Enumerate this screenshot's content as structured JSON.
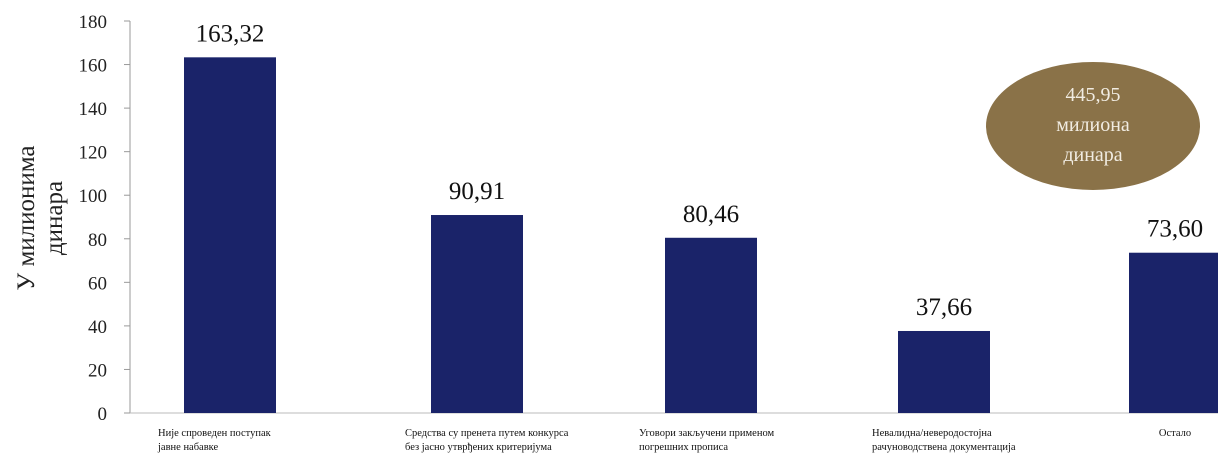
{
  "chart_data": {
    "type": "bar",
    "ylabel": [
      "У милионима",
      "динара"
    ],
    "ylim": [
      0,
      180
    ],
    "yticks": [
      0,
      20,
      40,
      60,
      80,
      100,
      120,
      140,
      160,
      180
    ],
    "categories": [
      [
        "Није спроведен поступак",
        "јавне набавке"
      ],
      [
        "Средства су пренета путем конкурса",
        "без јасно утврђених критеријума"
      ],
      [
        "Уговори закључени применом",
        "погрешних прописа"
      ],
      [
        "Невалидна/неверодостојна",
        "рачуноводствена документација"
      ],
      [
        "Остало"
      ]
    ],
    "values": [
      163.32,
      90.91,
      80.46,
      37.66,
      73.6
    ],
    "data_labels": [
      "163,32",
      "90,91",
      "80,46",
      "37,66",
      "73,60"
    ],
    "bar_color": "#1a2369",
    "grid": false,
    "total_badge": {
      "lines": [
        "445,95",
        "милиона",
        "динара"
      ],
      "color": "#8a7248"
    }
  }
}
